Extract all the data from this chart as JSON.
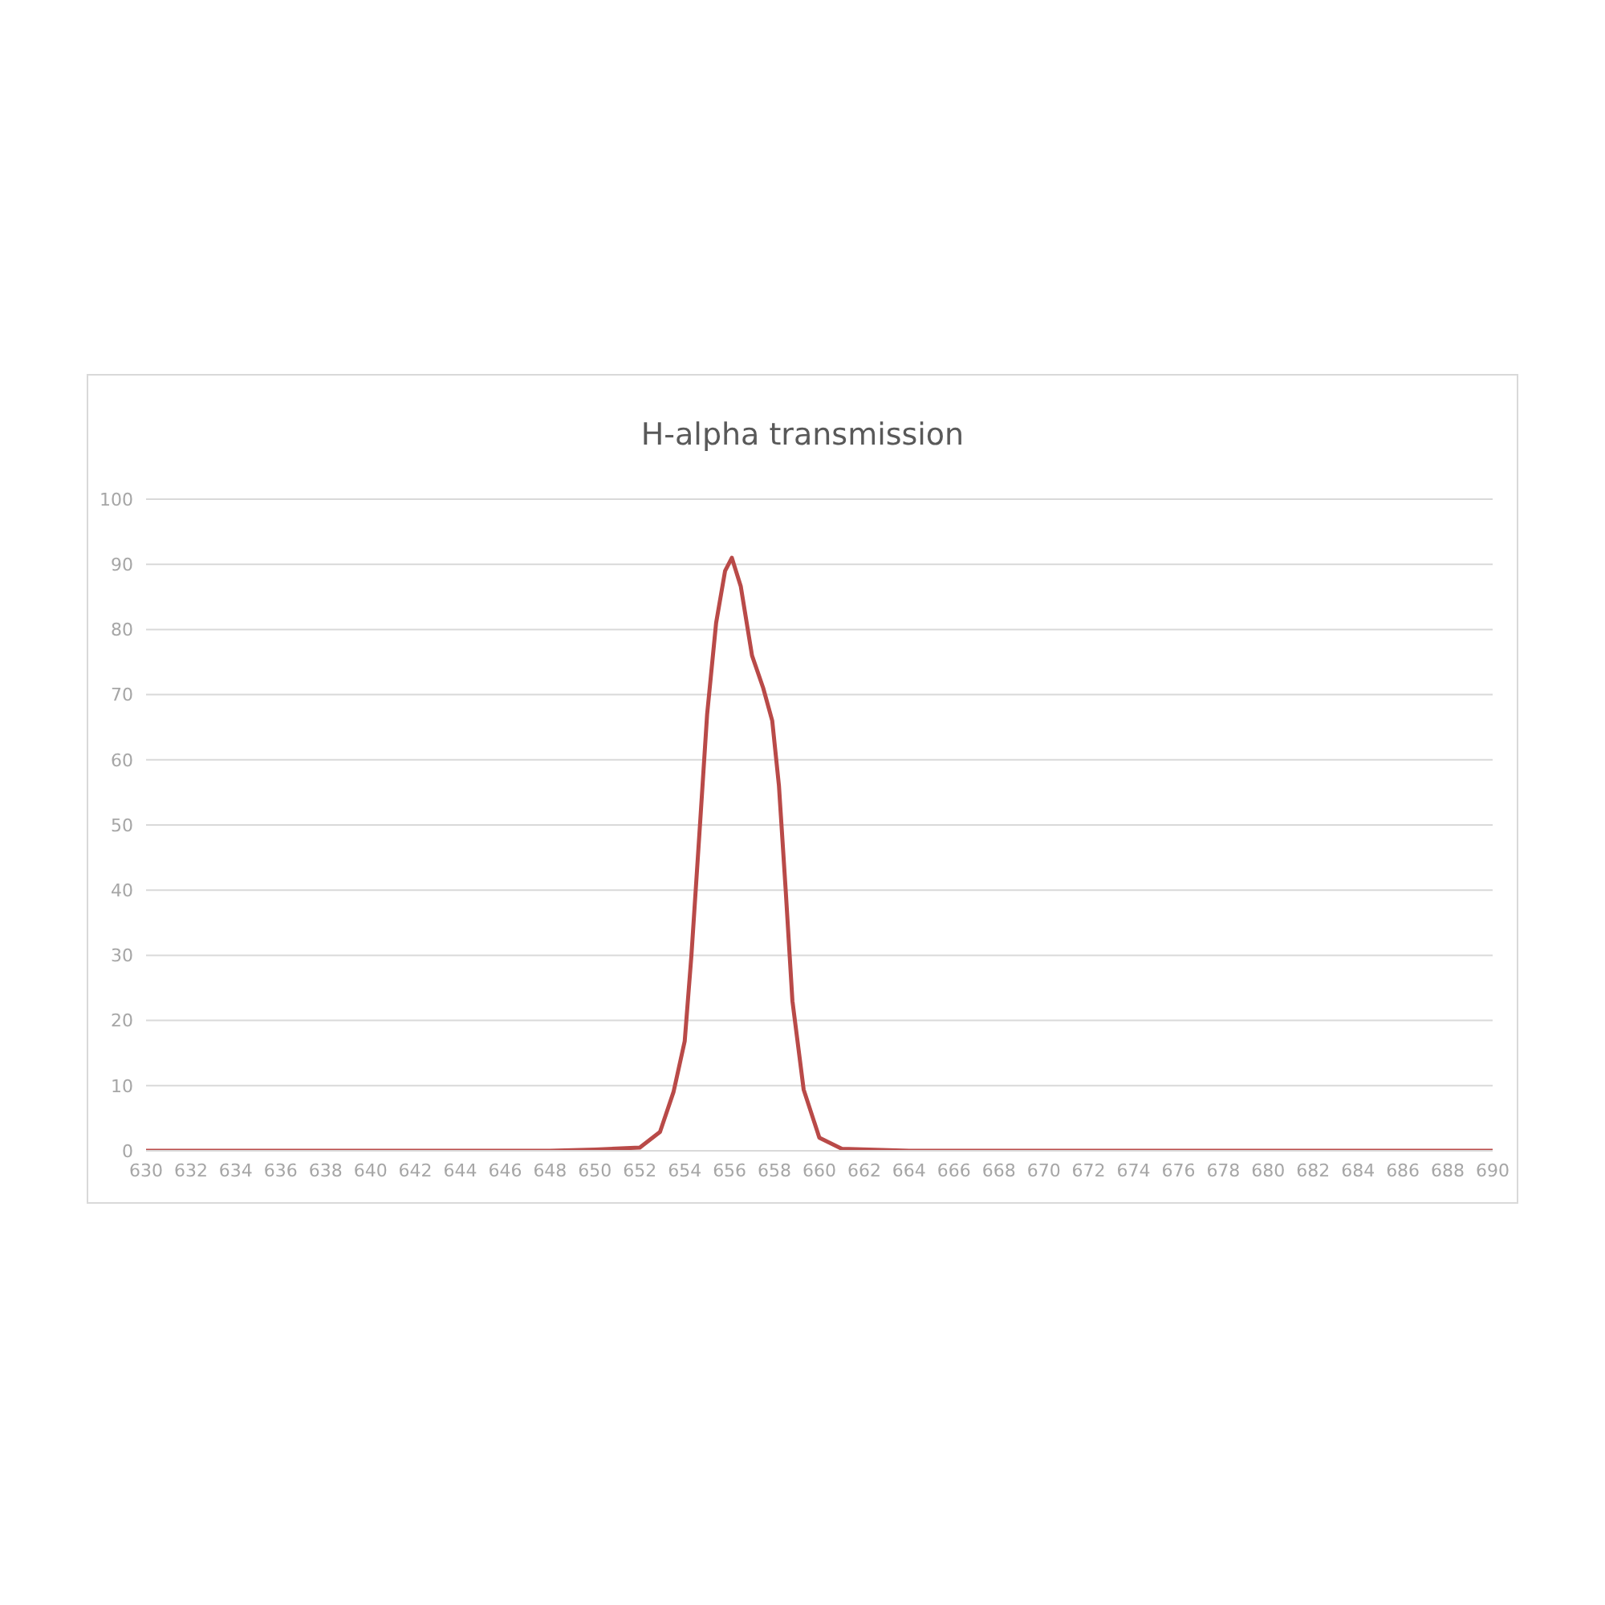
{
  "chart_data": {
    "type": "line",
    "title": "H-alpha transmission",
    "x": [
      630,
      648,
      650,
      652,
      652.9,
      653.5,
      654.0,
      654.3,
      654.7,
      655.0,
      655.4,
      655.8,
      656.1,
      656.5,
      657.0,
      657.5,
      657.9,
      658.2,
      658.5,
      658.8,
      659.3,
      660.0,
      661,
      664,
      690
    ],
    "series": [
      {
        "color": "#b94a48",
        "values": [
          0,
          0,
          0.2,
          0.5,
          2.9,
          9,
          16.8,
          30,
          51,
          67,
          81,
          89,
          91,
          86.6,
          76,
          71,
          66,
          56,
          40,
          23,
          9.4,
          2,
          0.3,
          0,
          0
        ]
      }
    ],
    "xlim": [
      630,
      690
    ],
    "xticks": [
      630,
      632,
      634,
      636,
      638,
      640,
      642,
      644,
      646,
      648,
      650,
      652,
      654,
      656,
      658,
      660,
      662,
      664,
      666,
      668,
      670,
      672,
      674,
      676,
      678,
      680,
      682,
      684,
      686,
      688,
      690
    ],
    "ylim": [
      0,
      100
    ],
    "yticks": [
      0,
      10,
      20,
      30,
      40,
      50,
      60,
      70,
      80,
      90,
      100
    ],
    "grid": "y"
  }
}
